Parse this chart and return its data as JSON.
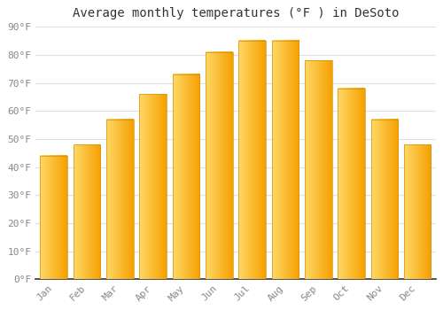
{
  "title": "Average monthly temperatures (°F ) in DeSoto",
  "months": [
    "Jan",
    "Feb",
    "Mar",
    "Apr",
    "May",
    "Jun",
    "Jul",
    "Aug",
    "Sep",
    "Oct",
    "Nov",
    "Dec"
  ],
  "values": [
    44,
    48,
    57,
    66,
    73,
    81,
    85,
    85,
    78,
    68,
    57,
    48
  ],
  "bar_color_left": "#FFD966",
  "bar_color_right": "#F5A000",
  "bar_color_mid": "#FDB827",
  "background_color": "#FFFFFF",
  "grid_color": "#E0E0E0",
  "ylim": [
    0,
    90
  ],
  "yticks": [
    0,
    10,
    20,
    30,
    40,
    50,
    60,
    70,
    80,
    90
  ],
  "ytick_labels": [
    "0°F",
    "10°F",
    "20°F",
    "30°F",
    "40°F",
    "50°F",
    "60°F",
    "70°F",
    "80°F",
    "90°F"
  ],
  "title_fontsize": 10,
  "tick_fontsize": 8,
  "tick_font_color": "#888888",
  "title_font_color": "#333333",
  "spine_color": "#333333"
}
